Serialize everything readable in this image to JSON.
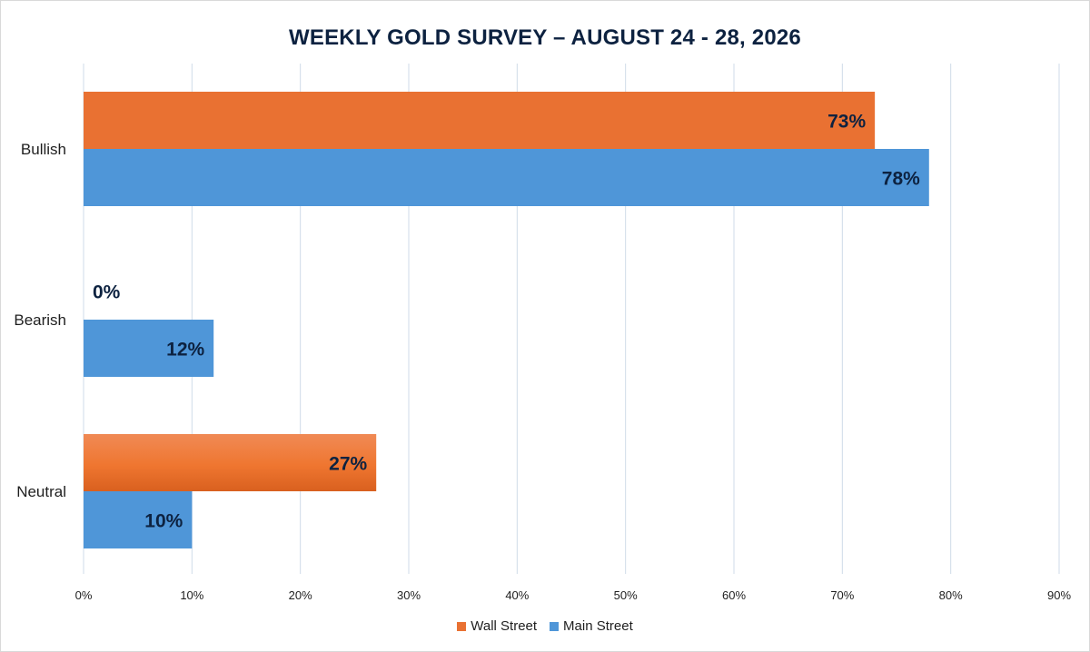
{
  "chart_data": {
    "type": "bar",
    "orientation": "horizontal",
    "title": "WEEKLY GOLD SURVEY – AUGUST 24 - 28, 2026",
    "categories": [
      "Bullish",
      "Bearish",
      "Neutral"
    ],
    "series": [
      {
        "name": "Wall Street",
        "color": "#e97132",
        "values": [
          73,
          0,
          27
        ],
        "labels": [
          "73%",
          "0%",
          "27%"
        ]
      },
      {
        "name": "Main Street",
        "color": "#4f96d8",
        "values": [
          78,
          12,
          10
        ],
        "labels": [
          "78%",
          "12%",
          "10%"
        ]
      }
    ],
    "xlim": [
      0,
      90
    ],
    "xticks": [
      0,
      10,
      20,
      30,
      40,
      50,
      60,
      70,
      80,
      90
    ],
    "xtick_labels": [
      "0%",
      "10%",
      "20%",
      "30%",
      "40%",
      "50%",
      "60%",
      "70%",
      "80%",
      "90%"
    ],
    "grid": "vertical",
    "legend": "bottom"
  }
}
